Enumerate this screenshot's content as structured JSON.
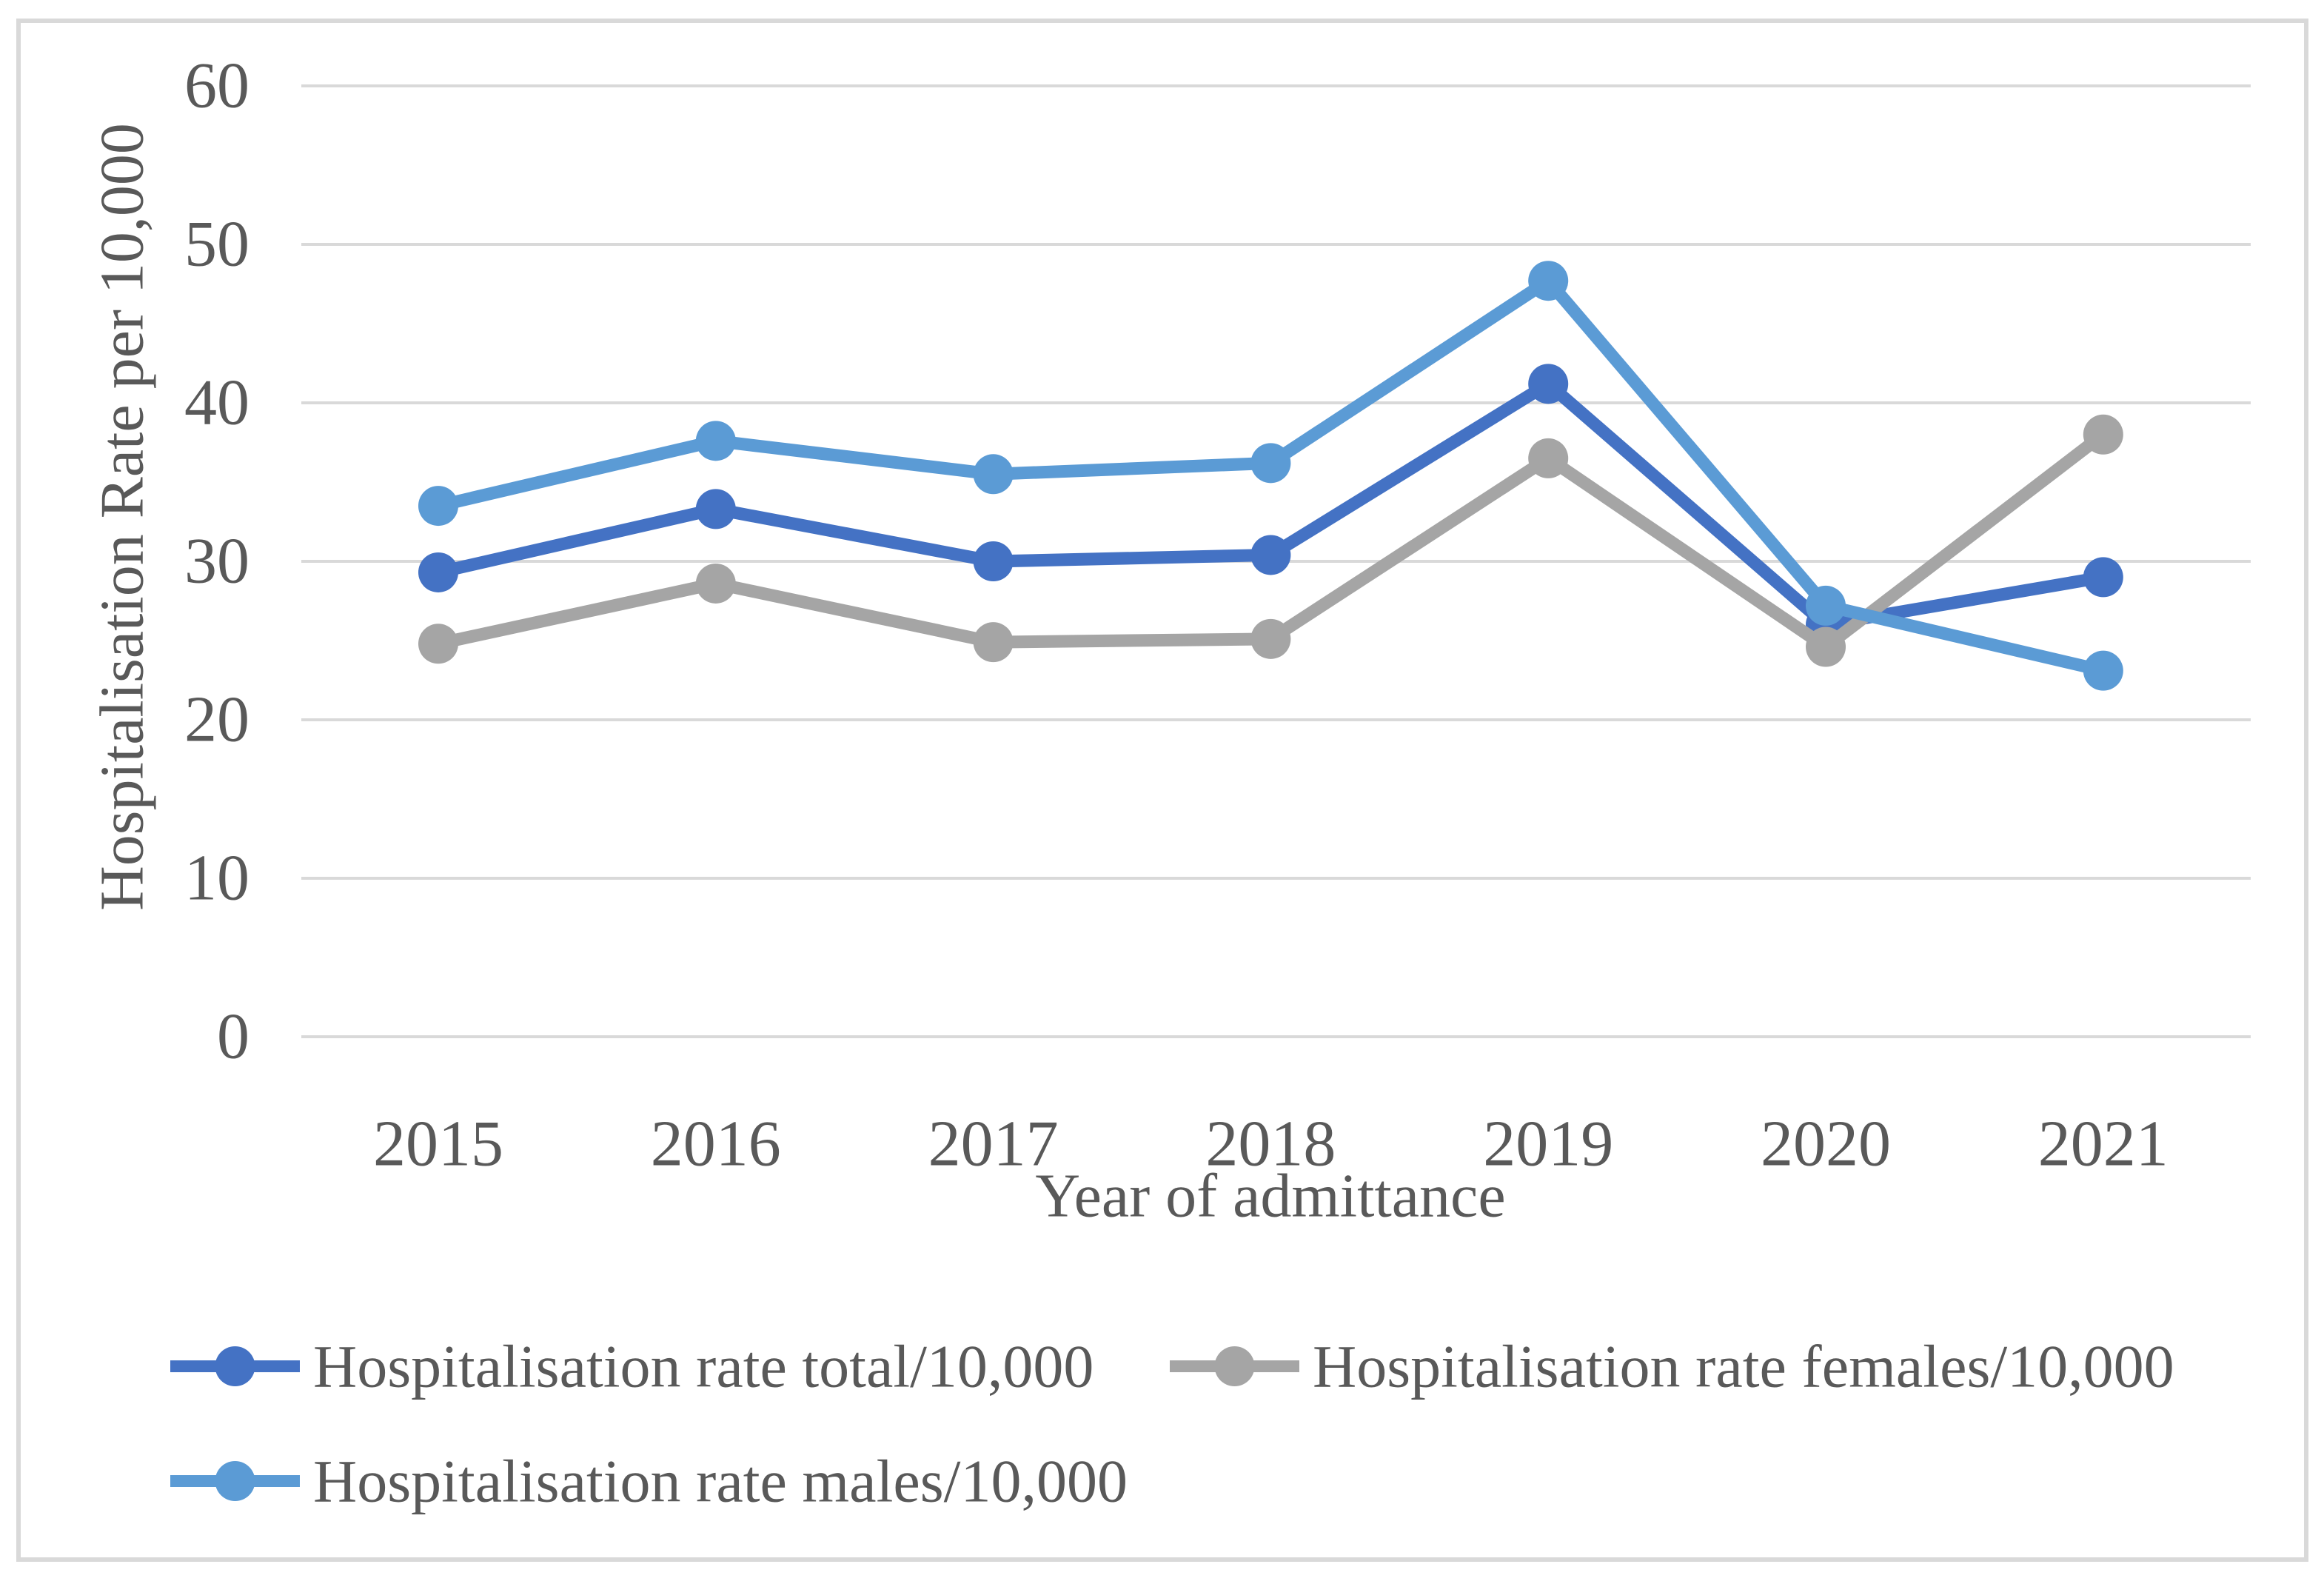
{
  "chart_data": {
    "type": "line",
    "title": "",
    "xlabel": "Year of admittance",
    "ylabel": "Hospitalisation Rate per 10,000",
    "categories": [
      "2015",
      "2016",
      "2017",
      "2018",
      "2019",
      "2020",
      "2021"
    ],
    "series": [
      {
        "name": "Hospitalisation rate total/10,000",
        "color": "#4472c4",
        "values": [
          29.3,
          33.3,
          30.0,
          30.4,
          41.2,
          26.0,
          29.0
        ]
      },
      {
        "name": "Hospitalisation rate females/10,000",
        "color": "#a5a5a5",
        "values": [
          24.8,
          28.6,
          24.9,
          25.1,
          36.5,
          24.6,
          38.0
        ]
      },
      {
        "name": "Hospitalisation rate males/10,000",
        "color": "#5b9bd5",
        "values": [
          33.5,
          37.6,
          35.5,
          36.2,
          47.7,
          27.2,
          23.1
        ]
      }
    ],
    "ylim": [
      0,
      60
    ],
    "yticks": [
      0,
      10,
      20,
      30,
      40,
      50,
      60
    ],
    "grid": true,
    "legend_position": "bottom",
    "legend_rows": [
      [
        0,
        1
      ],
      [
        2
      ]
    ],
    "colors": {
      "text": "#595959",
      "gridline": "#d9d9d9",
      "border": "#d9d9d9",
      "background": "#ffffff"
    }
  }
}
